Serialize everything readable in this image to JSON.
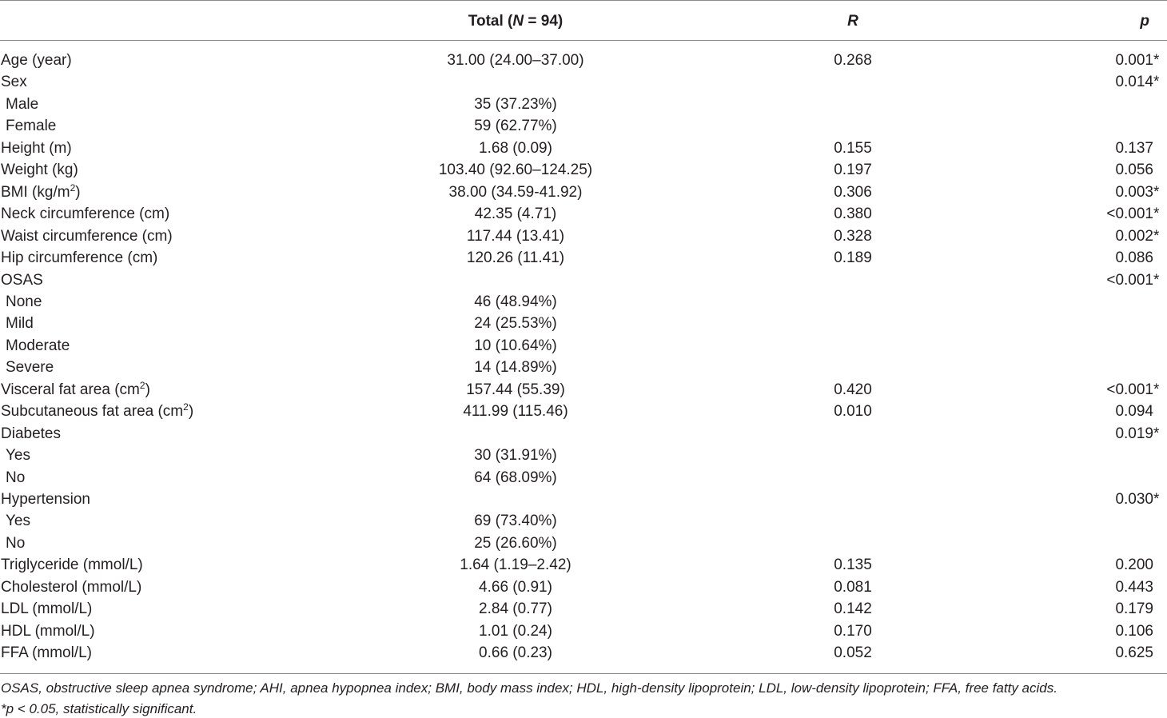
{
  "header": {
    "total_prefix": "Total (",
    "total_n": "N",
    "total_suffix": " = 94)",
    "r": "R",
    "p": "p"
  },
  "rows": [
    {
      "label": "Age (year)",
      "sup": "",
      "indent": false,
      "total": "31.00 (24.00–37.00)",
      "r": "0.268",
      "p": "0.001",
      "sig": "*"
    },
    {
      "label": "Sex",
      "sup": "",
      "indent": false,
      "total": "",
      "r": "",
      "p": "0.014",
      "sig": "*"
    },
    {
      "label": "Male",
      "sup": "",
      "indent": true,
      "total": "35 (37.23%)",
      "r": "",
      "p": "",
      "sig": ""
    },
    {
      "label": "Female",
      "sup": "",
      "indent": true,
      "total": "59 (62.77%)",
      "r": "",
      "p": "",
      "sig": ""
    },
    {
      "label": "Height (m)",
      "sup": "",
      "indent": false,
      "total": "1.68 (0.09)",
      "r": "0.155",
      "p": "0.137",
      "sig": ""
    },
    {
      "label": "Weight (kg)",
      "sup": "",
      "indent": false,
      "total": "103.40 (92.60–124.25)",
      "r": "0.197",
      "p": "0.056",
      "sig": ""
    },
    {
      "label": "BMI (kg/m",
      "sup": "2",
      "after": ")",
      "indent": false,
      "total": "38.00 (34.59-41.92)",
      "r": "0.306",
      "p": "0.003",
      "sig": "*"
    },
    {
      "label": "Neck circumference (cm)",
      "sup": "",
      "indent": false,
      "total": "42.35 (4.71)",
      "r": "0.380",
      "p": "<0.001",
      "sig": "*"
    },
    {
      "label": "Waist circumference (cm)",
      "sup": "",
      "indent": false,
      "total": "117.44 (13.41)",
      "r": "0.328",
      "p": "0.002",
      "sig": "*"
    },
    {
      "label": "Hip circumference (cm)",
      "sup": "",
      "indent": false,
      "total": "120.26 (11.41)",
      "r": "0.189",
      "p": "0.086",
      "sig": ""
    },
    {
      "label": "OSAS",
      "sup": "",
      "indent": false,
      "total": "",
      "r": "",
      "p": "<0.001",
      "sig": "*"
    },
    {
      "label": "None",
      "sup": "",
      "indent": true,
      "total": "46 (48.94%)",
      "r": "",
      "p": "",
      "sig": ""
    },
    {
      "label": "Mild",
      "sup": "",
      "indent": true,
      "total": "24 (25.53%)",
      "r": "",
      "p": "",
      "sig": ""
    },
    {
      "label": "Moderate",
      "sup": "",
      "indent": true,
      "total": "10 (10.64%)",
      "r": "",
      "p": "",
      "sig": ""
    },
    {
      "label": "Severe",
      "sup": "",
      "indent": true,
      "total": "14 (14.89%)",
      "r": "",
      "p": "",
      "sig": ""
    },
    {
      "label": "Visceral fat area (cm",
      "sup": "2",
      "after": ")",
      "indent": false,
      "total": "157.44 (55.39)",
      "r": "0.420",
      "p": "<0.001",
      "sig": "*"
    },
    {
      "label": "Subcutaneous fat area (cm",
      "sup": "2",
      "after": ")",
      "indent": false,
      "total": "411.99 (115.46)",
      "r": "0.010",
      "p": "0.094",
      "sig": ""
    },
    {
      "label": "Diabetes",
      "sup": "",
      "indent": false,
      "total": "",
      "r": "",
      "p": "0.019",
      "sig": "*"
    },
    {
      "label": "Yes",
      "sup": "",
      "indent": true,
      "total": "30 (31.91%)",
      "r": "",
      "p": "",
      "sig": ""
    },
    {
      "label": "No",
      "sup": "",
      "indent": true,
      "total": "64 (68.09%)",
      "r": "",
      "p": "",
      "sig": ""
    },
    {
      "label": "Hypertension",
      "sup": "",
      "indent": false,
      "total": "",
      "r": "",
      "p": "0.030",
      "sig": "*"
    },
    {
      "label": "Yes",
      "sup": "",
      "indent": true,
      "total": "69 (73.40%)",
      "r": "",
      "p": "",
      "sig": ""
    },
    {
      "label": "No",
      "sup": "",
      "indent": true,
      "total": "25 (26.60%)",
      "r": "",
      "p": "",
      "sig": ""
    },
    {
      "label": "Triglyceride (mmol/L)",
      "sup": "",
      "indent": false,
      "total": "1.64 (1.19–2.42)",
      "r": "0.135",
      "p": "0.200",
      "sig": ""
    },
    {
      "label": "Cholesterol (mmol/L)",
      "sup": "",
      "indent": false,
      "total": "4.66 (0.91)",
      "r": "0.081",
      "p": "0.443",
      "sig": ""
    },
    {
      "label": "LDL (mmol/L)",
      "sup": "",
      "indent": false,
      "total": "2.84 (0.77)",
      "r": "0.142",
      "p": "0.179",
      "sig": ""
    },
    {
      "label": "HDL (mmol/L)",
      "sup": "",
      "indent": false,
      "total": "1.01 (0.24)",
      "r": "0.170",
      "p": "0.106",
      "sig": ""
    },
    {
      "label": "FFA (mmol/L)",
      "sup": "",
      "indent": false,
      "total": "0.66 (0.23)",
      "r": "0.052",
      "p": "0.625",
      "sig": ""
    }
  ],
  "footnotes": {
    "abbreviations": "OSAS, obstructive sleep apnea syndrome; AHI, apnea hypopnea index; BMI, body mass index; HDL, high-density lipoprotein; LDL, low-density lipoprotein; FFA, free fatty acids.",
    "significance": "*p < 0.05, statistically significant."
  }
}
